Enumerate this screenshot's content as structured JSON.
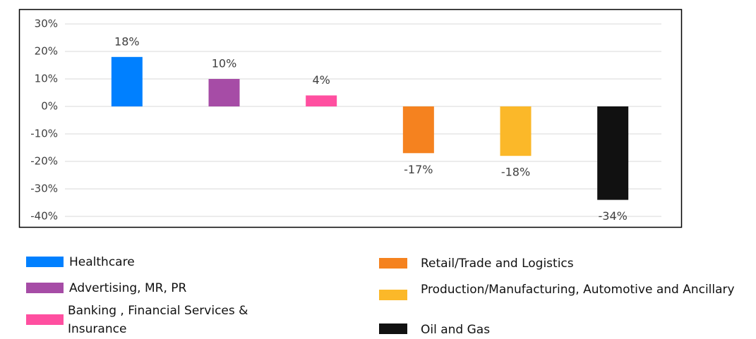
{
  "chart_data": {
    "type": "bar",
    "categories": [
      "Healthcare",
      "Advertising, MR, PR",
      "Banking , Financial Services & Insurance",
      "Retail/Trade and Logistics",
      "Production/Manufacturing, Automotive and Ancillary",
      "Oil and Gas"
    ],
    "values": [
      18,
      10,
      4,
      -17,
      -18,
      -34
    ],
    "value_labels": [
      "18%",
      "10%",
      "4%",
      "-17%",
      "-18%",
      "-34%"
    ],
    "colors": [
      "#0080ff",
      "#a64ca6",
      "#ff4fa0",
      "#f5821f",
      "#fbb829",
      "#111111"
    ],
    "ylim": [
      -40,
      30
    ],
    "yticks": [
      {
        "value": -40,
        "label": "-40%"
      },
      {
        "value": -30,
        "label": "-30%"
      },
      {
        "value": -20,
        "label": "-20%"
      },
      {
        "value": -10,
        "label": "-10%"
      },
      {
        "value": 0,
        "label": "0%"
      },
      {
        "value": 10,
        "label": "10%"
      },
      {
        "value": 20,
        "label": "20%"
      },
      {
        "value": 30,
        "label": "30%"
      }
    ],
    "grid": true
  }
}
